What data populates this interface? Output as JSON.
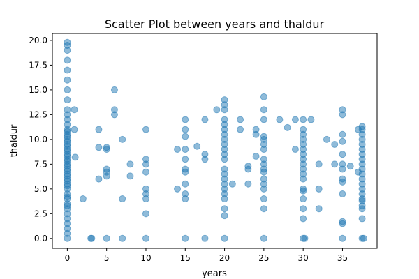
{
  "chart_data": {
    "type": "scatter",
    "title": "Scatter Plot between years and thaldur",
    "xlabel": "years",
    "ylabel": "thaldur",
    "xlim": [
      -1.9,
      39.4
    ],
    "ylim": [
      -1.0,
      20.7
    ],
    "xticks": [
      0,
      5,
      10,
      15,
      20,
      25,
      30,
      35
    ],
    "yticks": [
      0.0,
      2.5,
      5.0,
      7.5,
      10.0,
      12.5,
      15.0,
      17.5,
      20.0
    ],
    "xtick_labels": [
      "0",
      "5",
      "10",
      "15",
      "20",
      "25",
      "30",
      "35"
    ],
    "ytick_labels": [
      "0.0",
      "2.5",
      "5.0",
      "7.5",
      "10.0",
      "12.5",
      "15.0",
      "17.5",
      "20.0"
    ],
    "grid": false,
    "legend": "none",
    "marker": {
      "color": "#1f77b4",
      "alpha": 0.5
    },
    "points": [
      [
        0,
        0.0
      ],
      [
        0,
        0.5
      ],
      [
        0,
        1.0
      ],
      [
        0,
        1.5
      ],
      [
        0,
        2.0
      ],
      [
        0,
        2.5
      ],
      [
        0,
        3.0
      ],
      [
        0,
        3.3
      ],
      [
        0,
        3.5
      ],
      [
        0,
        4.0
      ],
      [
        0,
        4.2
      ],
      [
        0,
        4.5
      ],
      [
        0,
        5.0
      ],
      [
        0,
        5.3
      ],
      [
        0,
        5.5
      ],
      [
        0,
        5.8
      ],
      [
        0,
        6.0
      ],
      [
        0,
        6.3
      ],
      [
        0,
        6.5
      ],
      [
        0,
        6.8
      ],
      [
        0,
        7.0
      ],
      [
        0,
        7.3
      ],
      [
        0,
        7.5
      ],
      [
        0,
        7.8
      ],
      [
        0,
        8.0
      ],
      [
        0,
        8.3
      ],
      [
        0,
        8.5
      ],
      [
        0,
        8.8
      ],
      [
        0,
        9.0
      ],
      [
        0,
        9.3
      ],
      [
        0,
        9.5
      ],
      [
        0,
        9.8
      ],
      [
        0,
        10.0
      ],
      [
        0,
        10.3
      ],
      [
        0,
        10.5
      ],
      [
        0,
        10.8
      ],
      [
        0,
        11.0
      ],
      [
        0,
        11.5
      ],
      [
        0,
        12.0
      ],
      [
        0,
        12.5
      ],
      [
        0,
        13.0
      ],
      [
        0,
        14.0
      ],
      [
        0,
        15.0
      ],
      [
        0,
        16.0
      ],
      [
        0,
        17.0
      ],
      [
        0,
        18.0
      ],
      [
        0,
        19.0
      ],
      [
        0,
        19.5
      ],
      [
        0,
        19.8
      ],
      [
        0.9,
        13.0
      ],
      [
        0.9,
        11.0
      ],
      [
        1.0,
        8.2
      ],
      [
        2.0,
        4.0
      ],
      [
        3.0,
        0.0
      ],
      [
        3.1,
        0.0
      ],
      [
        4.0,
        11.0
      ],
      [
        4.0,
        9.2
      ],
      [
        4.0,
        6.0
      ],
      [
        5.0,
        9.2
      ],
      [
        5.0,
        9.0
      ],
      [
        5.0,
        7.0
      ],
      [
        5.0,
        6.7
      ],
      [
        5.0,
        6.3
      ],
      [
        5.0,
        0.0
      ],
      [
        6.0,
        15.0
      ],
      [
        6.0,
        13.0
      ],
      [
        6.0,
        12.5
      ],
      [
        7.0,
        10.0
      ],
      [
        7.0,
        4.0
      ],
      [
        7.0,
        0.0
      ],
      [
        8.0,
        7.5
      ],
      [
        8.0,
        6.3
      ],
      [
        10.0,
        11.0
      ],
      [
        10.0,
        8.0
      ],
      [
        10.0,
        7.5
      ],
      [
        10.0,
        6.7
      ],
      [
        10.0,
        5.0
      ],
      [
        10.0,
        4.5
      ],
      [
        10.0,
        4.0
      ],
      [
        10.0,
        2.5
      ],
      [
        10.0,
        0.0
      ],
      [
        14.0,
        9.0
      ],
      [
        14.0,
        5.0
      ],
      [
        15.0,
        12.0
      ],
      [
        15.0,
        11.0
      ],
      [
        15.0,
        10.3
      ],
      [
        15.0,
        9.0
      ],
      [
        15.0,
        8.0
      ],
      [
        15.0,
        7.0
      ],
      [
        15.0,
        6.7
      ],
      [
        15.0,
        5.5
      ],
      [
        15.0,
        4.5
      ],
      [
        15.0,
        4.0
      ],
      [
        15.0,
        0.0
      ],
      [
        16.5,
        9.3
      ],
      [
        17.5,
        12.0
      ],
      [
        17.5,
        8.5
      ],
      [
        17.5,
        8.0
      ],
      [
        17.5,
        0.0
      ],
      [
        19.0,
        13.0
      ],
      [
        20.0,
        14.0
      ],
      [
        20.0,
        13.5
      ],
      [
        20.0,
        13.0
      ],
      [
        20.0,
        12.0
      ],
      [
        20.0,
        11.5
      ],
      [
        20.0,
        11.0
      ],
      [
        20.0,
        10.5
      ],
      [
        20.0,
        10.0
      ],
      [
        20.0,
        9.5
      ],
      [
        20.0,
        9.0
      ],
      [
        20.0,
        8.5
      ],
      [
        20.0,
        8.0
      ],
      [
        20.0,
        7.0
      ],
      [
        20.0,
        6.5
      ],
      [
        20.0,
        6.0
      ],
      [
        20.0,
        5.5
      ],
      [
        20.0,
        5.0
      ],
      [
        20.0,
        4.5
      ],
      [
        20.0,
        4.0
      ],
      [
        20.0,
        3.0
      ],
      [
        20.0,
        2.3
      ],
      [
        20.0,
        0.0
      ],
      [
        21.0,
        5.5
      ],
      [
        22.0,
        12.0
      ],
      [
        22.0,
        11.0
      ],
      [
        23.0,
        7.3
      ],
      [
        23.0,
        7.0
      ],
      [
        23.0,
        5.5
      ],
      [
        24.0,
        11.0
      ],
      [
        24.0,
        10.5
      ],
      [
        24.0,
        8.3
      ],
      [
        25.0,
        14.3
      ],
      [
        25.0,
        13.0
      ],
      [
        25.0,
        12.0
      ],
      [
        25.0,
        10.3
      ],
      [
        25.0,
        10.0
      ],
      [
        25.0,
        9.5
      ],
      [
        25.0,
        9.0
      ],
      [
        25.0,
        8.0
      ],
      [
        25.0,
        7.5
      ],
      [
        25.0,
        7.0
      ],
      [
        25.0,
        6.7
      ],
      [
        25.0,
        6.0
      ],
      [
        25.0,
        5.5
      ],
      [
        25.0,
        5.0
      ],
      [
        25.0,
        4.0
      ],
      [
        25.0,
        3.0
      ],
      [
        25.0,
        0.0
      ],
      [
        27.0,
        12.0
      ],
      [
        28.0,
        11.2
      ],
      [
        29.0,
        12.0
      ],
      [
        29.0,
        9.0
      ],
      [
        30.0,
        12.0
      ],
      [
        30.0,
        11.0
      ],
      [
        30.0,
        10.5
      ],
      [
        30.0,
        10.0
      ],
      [
        30.0,
        9.5
      ],
      [
        30.0,
        9.0
      ],
      [
        30.0,
        8.5
      ],
      [
        30.0,
        8.0
      ],
      [
        30.0,
        7.5
      ],
      [
        30.0,
        7.0
      ],
      [
        30.0,
        6.5
      ],
      [
        30.0,
        6.0
      ],
      [
        30.0,
        5.0
      ],
      [
        30.0,
        4.8
      ],
      [
        30.0,
        4.0
      ],
      [
        30.0,
        3.0
      ],
      [
        30.0,
        2.0
      ],
      [
        30.0,
        0.0
      ],
      [
        30.2,
        0.0
      ],
      [
        31.0,
        12.0
      ],
      [
        32.0,
        7.5
      ],
      [
        32.0,
        5.0
      ],
      [
        32.0,
        3.0
      ],
      [
        33.0,
        10.0
      ],
      [
        34.0,
        9.5
      ],
      [
        34.0,
        7.5
      ],
      [
        35.0,
        13.0
      ],
      [
        35.0,
        12.5
      ],
      [
        35.0,
        10.5
      ],
      [
        35.0,
        9.8
      ],
      [
        35.0,
        8.5
      ],
      [
        35.0,
        7.5
      ],
      [
        35.0,
        7.0
      ],
      [
        35.0,
        6.0
      ],
      [
        35.0,
        5.7
      ],
      [
        35.0,
        4.5
      ],
      [
        35.0,
        1.7
      ],
      [
        35.0,
        1.5
      ],
      [
        35.0,
        0.0
      ],
      [
        36.0,
        7.3
      ],
      [
        37.0,
        11.0
      ],
      [
        37.0,
        6.7
      ],
      [
        37.5,
        11.3
      ],
      [
        37.5,
        11.0
      ],
      [
        37.5,
        10.5
      ],
      [
        37.5,
        10.0
      ],
      [
        37.5,
        9.5
      ],
      [
        37.5,
        9.0
      ],
      [
        37.5,
        8.5
      ],
      [
        37.5,
        8.0
      ],
      [
        37.5,
        7.5
      ],
      [
        37.5,
        7.0
      ],
      [
        37.5,
        6.5
      ],
      [
        37.5,
        6.0
      ],
      [
        37.5,
        5.5
      ],
      [
        37.5,
        5.0
      ],
      [
        37.5,
        4.5
      ],
      [
        37.5,
        4.0
      ],
      [
        37.5,
        3.8
      ],
      [
        37.5,
        3.3
      ],
      [
        37.5,
        3.0
      ],
      [
        37.5,
        2.0
      ],
      [
        37.5,
        0.0
      ],
      [
        37.7,
        0.0
      ]
    ]
  }
}
